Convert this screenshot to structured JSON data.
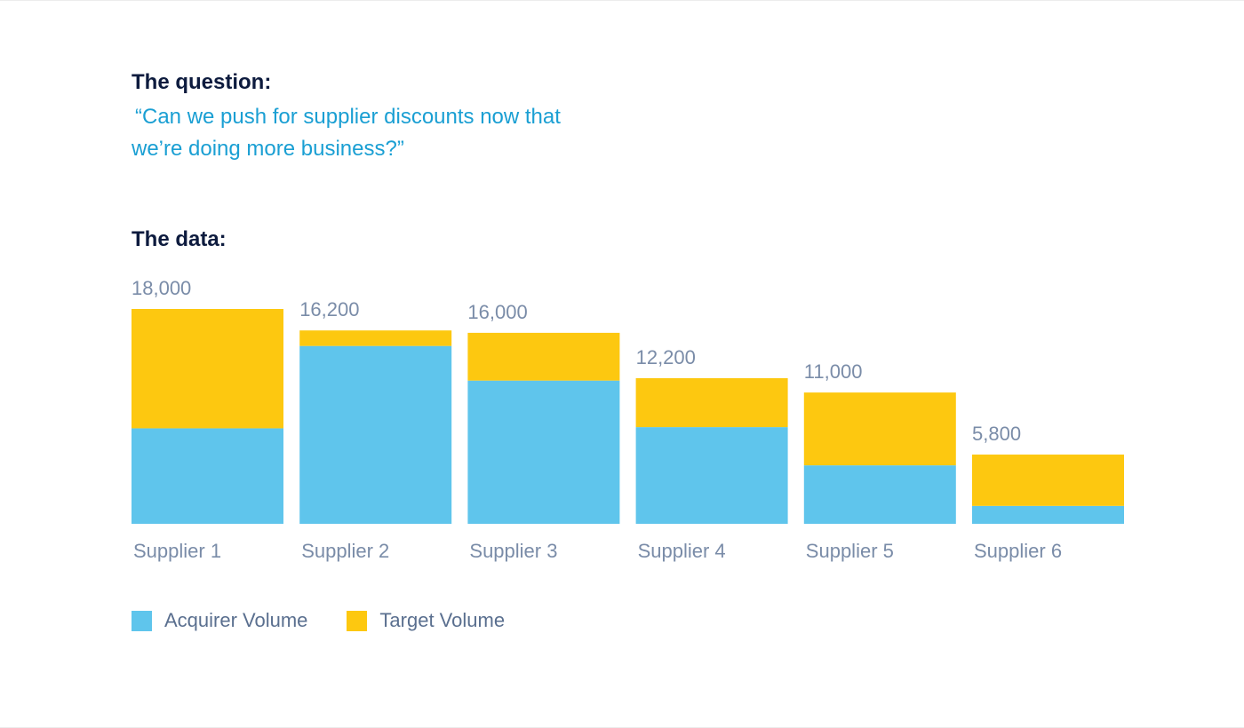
{
  "question": {
    "heading": "The question:",
    "line1": "“Can we push for supplier discounts now that",
    "line2": "we’re doing more business?”"
  },
  "data_heading": "The data:",
  "colors": {
    "acquirer": "#5fc5ec",
    "target": "#fdc810",
    "label": "#7a8ca8",
    "heading": "#0d1b3e",
    "accent": "#1a9fd3"
  },
  "chart_data": {
    "type": "bar",
    "stacked": true,
    "categories": [
      "Supplier 1",
      "Supplier 2",
      "Supplier 3",
      "Supplier 4",
      "Supplier 5",
      "Supplier 6"
    ],
    "series": [
      {
        "name": "Acquirer Volume",
        "values": [
          8000,
          14900,
          12000,
          8100,
          4900,
          1500
        ]
      },
      {
        "name": "Target Volume",
        "values": [
          10000,
          1300,
          4000,
          4100,
          6100,
          4300
        ]
      }
    ],
    "total_labels": [
      "18,000",
      "16,200",
      "16,000",
      "12,200",
      "11,000",
      "5,800"
    ],
    "totals": [
      18000,
      16200,
      16000,
      12200,
      11000,
      5800
    ],
    "title": "",
    "xlabel": "",
    "ylabel": "",
    "ylim": [
      0,
      18000
    ],
    "grid": false,
    "legend": "bottom-left"
  }
}
